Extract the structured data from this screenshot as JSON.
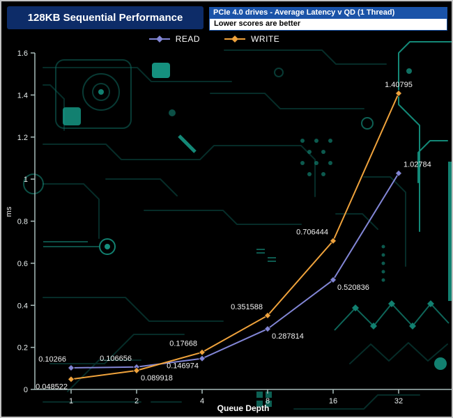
{
  "chart_data": {
    "type": "line",
    "title": "128KB Sequential Performance",
    "subtitle": "PCIe 4.0 drives - Average Latency v QD (1 Thread)",
    "note": "Lower scores are better",
    "x_label": "Queue Depth",
    "y_label": "ms",
    "categories": [
      "1",
      "2",
      "4",
      "8",
      "16",
      "32"
    ],
    "x_scale": "equal-spaced-log2-categories",
    "ylim": [
      0,
      1.6
    ],
    "y_tick_step": 0.2,
    "grid": false,
    "legend_position": "top-center",
    "series": [
      {
        "name": "READ",
        "color": "#8286d6",
        "marker": "diamond",
        "values": [
          0.10266,
          0.106656,
          0.146974,
          0.287814,
          0.520836,
          1.02784
        ],
        "label_positions": [
          "above-left",
          "above-left",
          "below-left",
          "below-right",
          "below-right",
          "above-right"
        ]
      },
      {
        "name": "WRITE",
        "color": "#f0a33c",
        "marker": "diamond",
        "values": [
          0.048522,
          0.089918,
          0.17668,
          0.351588,
          0.706444,
          1.40795
        ],
        "label_positions": [
          "below-left",
          "below-right",
          "above-left",
          "above-left",
          "above-left",
          "above"
        ]
      }
    ]
  },
  "colors": {
    "background": "#000000",
    "circuit_bright": "#17a08c",
    "circuit_dim": "#0f6a5f",
    "axis": "#a8bcba",
    "tick_text": "#e8eeee",
    "label_text": "#f2f2f2",
    "title_box_bg": "#0d2c68",
    "subtitle_bar_bg": "#1a53a8",
    "note_bar_bg": "#ffffff",
    "note_text": "#000000",
    "read": "#8286d6",
    "write": "#f0a33c"
  }
}
